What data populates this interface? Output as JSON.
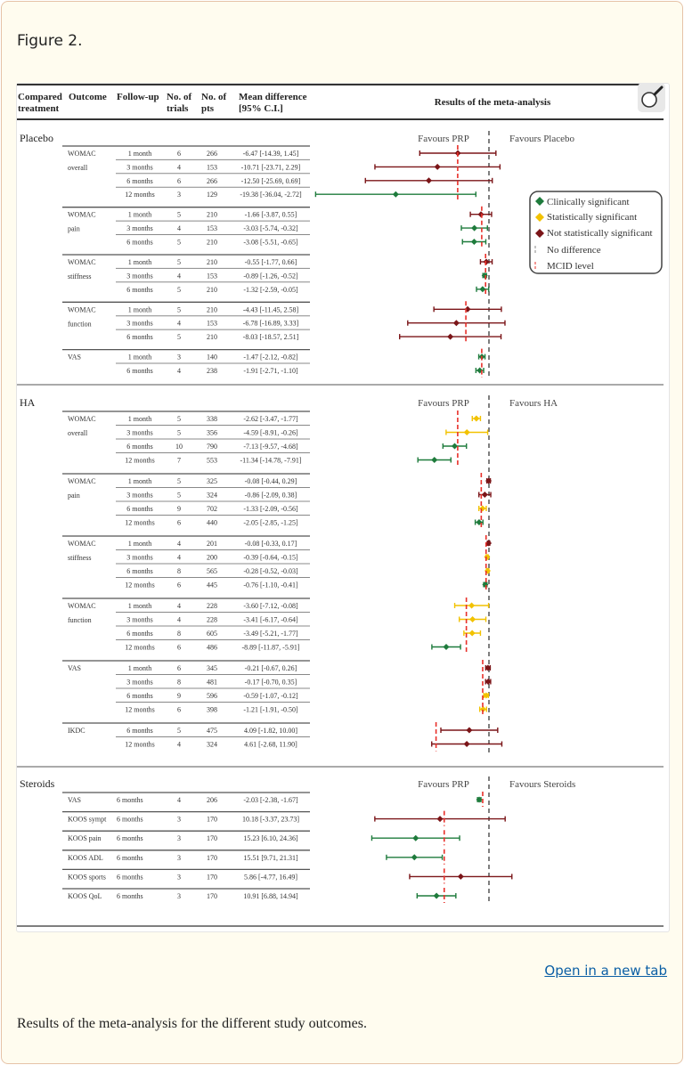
{
  "figure_label": "Figure 2.",
  "open_link": "Open in a new tab",
  "caption": "Results of the meta-analysis for the different study outcomes.",
  "colors": {
    "clinical": "#1e7b3c",
    "statistical": "#f2c200",
    "not_significant": "#7b1518",
    "no_difference": "#555555",
    "mcid": "#e8302a"
  },
  "icons": {
    "zoom": "magnifier-icon"
  },
  "chart_data": {
    "type": "forest",
    "title": "Results of the meta-analysis",
    "columns": {
      "compared": [
        "Compared",
        "treatment"
      ],
      "outcome": "Outcome",
      "followup": "Follow-up",
      "trials": [
        "No. of",
        "trials"
      ],
      "pts": [
        "No. of",
        "pts"
      ],
      "md": [
        "Mean difference",
        "[95% C.I.]"
      ]
    },
    "legend": {
      "clinical": "Clinically significant",
      "statistical": "Statistically significant",
      "not_significant": "Not statistically significant",
      "no_difference": "No difference",
      "mcid": "MCID level"
    },
    "sections": [
      {
        "name": "Placebo",
        "favours_left": "Favours PRP",
        "favours_right": "Favours Placebo",
        "groups": [
          {
            "outcome": [
              "WOMAC",
              "overall"
            ],
            "mcid": -6.5,
            "rows": [
              {
                "followup": "1 month",
                "trials": "6",
                "pts": "266",
                "md": "-6.47 [-14.39, 1.45]",
                "est": -6.47,
                "lo": -14.39,
                "hi": 1.45,
                "sig": "not_significant"
              },
              {
                "followup": "3 months",
                "trials": "4",
                "pts": "153",
                "md": "-10.71 [-23.71, 2.29]",
                "est": -10.71,
                "lo": -23.71,
                "hi": 2.29,
                "sig": "not_significant"
              },
              {
                "followup": "6 months",
                "trials": "6",
                "pts": "266",
                "md": "-12.50 [-25.69, 0.69]",
                "est": -12.5,
                "lo": -25.69,
                "hi": 0.69,
                "sig": "not_significant"
              },
              {
                "followup": "12 months",
                "trials": "3",
                "pts": "129",
                "md": "-19.38 [-36.04, -2.72]",
                "est": -19.38,
                "lo": -36.04,
                "hi": -2.72,
                "sig": "clinical"
              }
            ]
          },
          {
            "outcome": [
              "WOMAC",
              "pain"
            ],
            "mcid": -1.5,
            "rows": [
              {
                "followup": "1 month",
                "trials": "5",
                "pts": "210",
                "md": "-1.66 [-3.87, 0.55]",
                "est": -1.66,
                "lo": -3.87,
                "hi": 0.55,
                "sig": "not_significant"
              },
              {
                "followup": "3 months",
                "trials": "4",
                "pts": "153",
                "md": "-3.03 [-5.74, -0.32]",
                "est": -3.03,
                "lo": -5.74,
                "hi": -0.32,
                "sig": "clinical"
              },
              {
                "followup": "6 months",
                "trials": "5",
                "pts": "210",
                "md": "-3.08 [-5.51, -0.65]",
                "est": -3.08,
                "lo": -5.51,
                "hi": -0.65,
                "sig": "clinical"
              }
            ]
          },
          {
            "outcome": [
              "WOMAC",
              "stiffness"
            ],
            "mcid": -0.7,
            "rows": [
              {
                "followup": "1 month",
                "trials": "5",
                "pts": "210",
                "md": "-0.55 [-1.77, 0.66]",
                "est": -0.55,
                "lo": -1.77,
                "hi": 0.66,
                "sig": "not_significant"
              },
              {
                "followup": "3 months",
                "trials": "4",
                "pts": "153",
                "md": "-0.89 [-1.26, -0.52]",
                "est": -0.89,
                "lo": -1.26,
                "hi": -0.52,
                "sig": "clinical"
              },
              {
                "followup": "6 months",
                "trials": "5",
                "pts": "210",
                "md": "-1.32 [-2.59, -0.05]",
                "est": -1.32,
                "lo": -2.59,
                "hi": -0.05,
                "sig": "clinical"
              }
            ]
          },
          {
            "outcome": [
              "WOMAC",
              "function"
            ],
            "mcid": -4.8,
            "rows": [
              {
                "followup": "1 month",
                "trials": "5",
                "pts": "210",
                "md": "-4.43 [-11.45, 2.58]",
                "est": -4.43,
                "lo": -11.45,
                "hi": 2.58,
                "sig": "not_significant"
              },
              {
                "followup": "3 months",
                "trials": "4",
                "pts": "153",
                "md": "-6.78 [-16.89, 3.33]",
                "est": -6.78,
                "lo": -16.89,
                "hi": 3.33,
                "sig": "not_significant"
              },
              {
                "followup": "6 months",
                "trials": "5",
                "pts": "210",
                "md": "-8.03 [-18.57, 2.51]",
                "est": -8.03,
                "lo": -18.57,
                "hi": 2.51,
                "sig": "not_significant"
              }
            ]
          },
          {
            "outcome": [
              "VAS",
              ""
            ],
            "mcid": -1.5,
            "rows": [
              {
                "followup": "1 month",
                "trials": "3",
                "pts": "140",
                "md": "-1.47 [-2.12, -0.82]",
                "est": -1.47,
                "lo": -2.12,
                "hi": -0.82,
                "sig": "clinical"
              },
              {
                "followup": "6 months",
                "trials": "4",
                "pts": "238",
                "md": "-1.91 [-2.71, -1.10]",
                "est": -1.91,
                "lo": -2.71,
                "hi": -1.1,
                "sig": "clinical"
              }
            ]
          }
        ]
      },
      {
        "name": "HA",
        "favours_left": "Favours PRP",
        "favours_right": "Favours HA",
        "groups": [
          {
            "outcome": [
              "WOMAC",
              "overall"
            ],
            "mcid": -6.5,
            "rows": [
              {
                "followup": "1 month",
                "trials": "5",
                "pts": "338",
                "md": "-2.62 [-3.47, -1.77]",
                "est": -2.62,
                "lo": -3.47,
                "hi": -1.77,
                "sig": "statistical"
              },
              {
                "followup": "3 months",
                "trials": "5",
                "pts": "356",
                "md": "-4.59 [-8.91, -0.26]",
                "est": -4.59,
                "lo": -8.91,
                "hi": -0.26,
                "sig": "statistical"
              },
              {
                "followup": "6 months",
                "trials": "10",
                "pts": "790",
                "md": "-7.13 [-9.57, -4.68]",
                "est": -7.13,
                "lo": -9.57,
                "hi": -4.68,
                "sig": "clinical"
              },
              {
                "followup": "12 months",
                "trials": "7",
                "pts": "553",
                "md": "-11.34 [-14.78, -7.91]",
                "est": -11.34,
                "lo": -14.78,
                "hi": -7.91,
                "sig": "clinical"
              }
            ]
          },
          {
            "outcome": [
              "WOMAC",
              "pain"
            ],
            "mcid": -1.6,
            "rows": [
              {
                "followup": "1 month",
                "trials": "5",
                "pts": "325",
                "md": "-0.08 [-0.44, 0.29]",
                "est": -0.08,
                "lo": -0.44,
                "hi": 0.29,
                "sig": "not_significant"
              },
              {
                "followup": "3 months",
                "trials": "5",
                "pts": "324",
                "md": "-0.86 [-2.09, 0.38]",
                "est": -0.86,
                "lo": -2.09,
                "hi": 0.38,
                "sig": "not_significant"
              },
              {
                "followup": "6 months",
                "trials": "9",
                "pts": "702",
                "md": "-1.33 [-2.09, -0.56]",
                "est": -1.33,
                "lo": -2.09,
                "hi": -0.56,
                "sig": "statistical"
              },
              {
                "followup": "12 months",
                "trials": "6",
                "pts": "440",
                "md": "-2.05 [-2.85, -1.25]",
                "est": -2.05,
                "lo": -2.85,
                "hi": -1.25,
                "sig": "clinical"
              }
            ]
          },
          {
            "outcome": [
              "WOMAC",
              "stiffness"
            ],
            "mcid": -0.6,
            "rows": [
              {
                "followup": "1 month",
                "trials": "4",
                "pts": "201",
                "md": "-0.08 [-0.33, 0.17]",
                "est": -0.08,
                "lo": -0.33,
                "hi": 0.17,
                "sig": "not_significant"
              },
              {
                "followup": "3 months",
                "trials": "4",
                "pts": "200",
                "md": "-0.39 [-0.64, -0.15]",
                "est": -0.39,
                "lo": -0.64,
                "hi": -0.15,
                "sig": "statistical"
              },
              {
                "followup": "6 months",
                "trials": "8",
                "pts": "565",
                "md": "-0.28 [-0.52, -0.03]",
                "est": -0.28,
                "lo": -0.52,
                "hi": -0.03,
                "sig": "statistical"
              },
              {
                "followup": "12 months",
                "trials": "6",
                "pts": "445",
                "md": "-0.76 [-1.10, -0.41]",
                "est": -0.76,
                "lo": -1.1,
                "hi": -0.41,
                "sig": "clinical"
              }
            ]
          },
          {
            "outcome": [
              "WOMAC",
              "function"
            ],
            "mcid": -4.7,
            "rows": [
              {
                "followup": "1 month",
                "trials": "4",
                "pts": "228",
                "md": "-3.60 [-7.12, -0.08]",
                "est": -3.6,
                "lo": -7.12,
                "hi": -0.08,
                "sig": "statistical"
              },
              {
                "followup": "3 months",
                "trials": "4",
                "pts": "228",
                "md": "-3.41 [-6.17, -0.64]",
                "est": -3.41,
                "lo": -6.17,
                "hi": -0.64,
                "sig": "statistical"
              },
              {
                "followup": "6 months",
                "trials": "8",
                "pts": "605",
                "md": "-3.49 [-5.21, -1.77]",
                "est": -3.49,
                "lo": -5.21,
                "hi": -1.77,
                "sig": "statistical"
              },
              {
                "followup": "12 months",
                "trials": "6",
                "pts": "486",
                "md": "-8.89 [-11.87, -5.91]",
                "est": -8.89,
                "lo": -11.87,
                "hi": -5.91,
                "sig": "clinical"
              }
            ]
          },
          {
            "outcome": [
              "VAS",
              ""
            ],
            "mcid": -1.3,
            "rows": [
              {
                "followup": "1 month",
                "trials": "6",
                "pts": "345",
                "md": "-0.21 [-0.67, 0.26]",
                "est": -0.21,
                "lo": -0.67,
                "hi": 0.26,
                "sig": "not_significant"
              },
              {
                "followup": "3 months",
                "trials": "8",
                "pts": "481",
                "md": "-0.17 [-0.70, 0.35]",
                "est": -0.17,
                "lo": -0.7,
                "hi": 0.35,
                "sig": "not_significant"
              },
              {
                "followup": "6 months",
                "trials": "9",
                "pts": "596",
                "md": "-0.59 [-1.07, -0.12]",
                "est": -0.59,
                "lo": -1.07,
                "hi": -0.12,
                "sig": "statistical"
              },
              {
                "followup": "12 months",
                "trials": "6",
                "pts": "398",
                "md": "-1.21 [-1.91, -0.50]",
                "est": -1.21,
                "lo": -1.91,
                "hi": -0.5,
                "sig": "statistical"
              }
            ]
          },
          {
            "outcome": [
              "IKDC",
              ""
            ],
            "mcid": 11,
            "higher_is_better": true,
            "rows": [
              {
                "followup": "6 months",
                "trials": "5",
                "pts": "475",
                "md": "4.09 [-1.82, 10.00]",
                "est": 4.09,
                "lo": -1.82,
                "hi": 10.0,
                "sig": "not_significant"
              },
              {
                "followup": "12 months",
                "trials": "4",
                "pts": "324",
                "md": "4.61 [-2.68, 11.90]",
                "est": 4.61,
                "lo": -2.68,
                "hi": 11.9,
                "sig": "not_significant"
              }
            ]
          }
        ]
      },
      {
        "name": "Steroids",
        "favours_left": "Favours PRP",
        "favours_right": "Favours Steroids",
        "single_row_groups": true,
        "groups": [
          {
            "outcome": [
              "VAS",
              ""
            ],
            "mcid": -1.3,
            "rows": [
              {
                "followup": "6 months",
                "trials": "4",
                "pts": "206",
                "md": "-2.03 [-2.38, -1.67]",
                "est": -2.03,
                "lo": -2.38,
                "hi": -1.67,
                "sig": "clinical"
              }
            ]
          },
          {
            "outcome": [
              "KOOS sympt",
              ""
            ],
            "mcid": 9.3,
            "higher_is_better": true,
            "rows": [
              {
                "followup": "6 months",
                "trials": "3",
                "pts": "170",
                "md": "10.18 [-3.37, 23.73]",
                "est": 10.18,
                "lo": -3.37,
                "hi": 23.73,
                "sig": "not_significant"
              }
            ]
          },
          {
            "outcome": [
              "KOOS pain",
              ""
            ],
            "mcid": 9.3,
            "higher_is_better": true,
            "rows": [
              {
                "followup": "6 months",
                "trials": "3",
                "pts": "170",
                "md": "15.23 [6.10, 24.36]",
                "est": 15.23,
                "lo": 6.1,
                "hi": 24.36,
                "sig": "clinical"
              }
            ]
          },
          {
            "outcome": [
              "KOOS ADL",
              ""
            ],
            "mcid": 9.3,
            "higher_is_better": true,
            "rows": [
              {
                "followup": "6 months",
                "trials": "3",
                "pts": "170",
                "md": "15.51 [9.71, 21.31]",
                "est": 15.51,
                "lo": 9.71,
                "hi": 21.31,
                "sig": "clinical"
              }
            ]
          },
          {
            "outcome": [
              "KOOS sports",
              ""
            ],
            "mcid": 9.3,
            "higher_is_better": true,
            "rows": [
              {
                "followup": "6 months",
                "trials": "3",
                "pts": "170",
                "md": "5.86 [-4.77, 16.49]",
                "est": 5.86,
                "lo": -4.77,
                "hi": 16.49,
                "sig": "not_significant"
              }
            ]
          },
          {
            "outcome": [
              "KOOS QoL",
              ""
            ],
            "mcid": 9.3,
            "higher_is_better": true,
            "rows": [
              {
                "followup": "6 months",
                "trials": "3",
                "pts": "170",
                "md": "10.91 [6.88, 14.94]",
                "est": 10.91,
                "lo": 6.88,
                "hi": 14.94,
                "sig": "clinical"
              }
            ]
          }
        ]
      }
    ]
  }
}
